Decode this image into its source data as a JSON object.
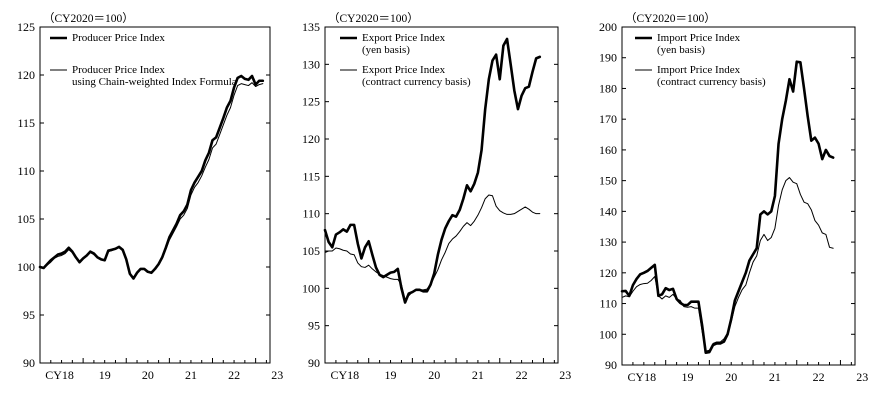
{
  "chart_data": [
    {
      "type": "line",
      "unit_label": "（CY2020＝100）",
      "ylim": [
        90,
        125
      ],
      "yticks": [
        "90",
        "95",
        "100",
        "105",
        "110",
        "115",
        "120",
        "125"
      ],
      "xlim": [
        0,
        64
      ],
      "x_tick_labels": [
        {
          "label": "CY18",
          "x": 0
        },
        {
          "label": "19",
          "x": 12
        },
        {
          "label": "20",
          "x": 24
        },
        {
          "label": "21",
          "x": 36
        },
        {
          "label": "22",
          "x": 48
        },
        {
          "label": "23",
          "x": 60
        }
      ],
      "series": [
        {
          "name": "Producer Price Index",
          "legend_lines": [
            "Producer Price Index"
          ],
          "style": "bold",
          "values": [
            100.0,
            99.9,
            100.3,
            100.7,
            101.0,
            101.3,
            101.4,
            101.6,
            102.0,
            101.6,
            101.0,
            100.5,
            100.9,
            101.2,
            101.6,
            101.4,
            101.0,
            100.8,
            100.7,
            101.7,
            101.8,
            101.9,
            102.1,
            101.8,
            100.8,
            99.3,
            98.8,
            99.4,
            99.8,
            99.8,
            99.5,
            99.4,
            99.8,
            100.3,
            101.0,
            102.0,
            103.1,
            103.8,
            104.5,
            105.4,
            105.8,
            106.5,
            108.0,
            108.8,
            109.4,
            110.0,
            111.1,
            111.9,
            113.2,
            113.5,
            114.5,
            115.5,
            116.6,
            117.3,
            118.7,
            119.7,
            119.9,
            119.6,
            119.5,
            119.9,
            119.0,
            119.4,
            119.4
          ]
        },
        {
          "name": "Producer Price Index using Chain-weighted Index Formula",
          "legend_lines": [
            "Producer Price Index",
            "using Chain-weighted Index Formula"
          ],
          "style": "thin",
          "values": [
            100.1,
            99.9,
            100.2,
            100.5,
            100.9,
            101.1,
            101.2,
            101.4,
            101.8,
            101.5,
            101.0,
            100.6,
            100.9,
            101.2,
            101.5,
            101.3,
            101.0,
            100.8,
            100.7,
            101.6,
            101.7,
            101.9,
            102.0,
            101.7,
            100.8,
            99.3,
            98.9,
            99.4,
            99.8,
            99.8,
            99.5,
            99.4,
            99.8,
            100.2,
            100.9,
            101.8,
            102.8,
            103.5,
            104.2,
            105.0,
            105.4,
            106.1,
            107.5,
            108.3,
            108.8,
            109.5,
            110.4,
            111.2,
            112.4,
            112.8,
            113.8,
            114.8,
            115.8,
            116.6,
            117.9,
            118.9,
            119.1,
            119.0,
            118.9,
            119.2,
            118.8,
            119.0,
            119.1
          ]
        }
      ]
    },
    {
      "type": "line",
      "unit_label": "（CY2020＝100）",
      "ylim": [
        90,
        135
      ],
      "yticks": [
        "90",
        "95",
        "100",
        "105",
        "110",
        "115",
        "120",
        "125",
        "130",
        "135"
      ],
      "xlim": [
        0,
        64
      ],
      "x_tick_labels": [
        {
          "label": "CY18",
          "x": 0
        },
        {
          "label": "19",
          "x": 12
        },
        {
          "label": "20",
          "x": 24
        },
        {
          "label": "21",
          "x": 36
        },
        {
          "label": "22",
          "x": 48
        },
        {
          "label": "23",
          "x": 60
        }
      ],
      "series": [
        {
          "name": "Export Price Index (yen basis)",
          "legend_lines": [
            "Export Price Index",
            "(yen basis)"
          ],
          "style": "bold",
          "values": [
            107.8,
            106.2,
            105.5,
            107.2,
            107.5,
            107.9,
            107.6,
            108.5,
            108.5,
            106.0,
            104.0,
            105.5,
            106.3,
            104.5,
            102.8,
            101.8,
            101.5,
            101.8,
            102.1,
            102.2,
            102.6,
            100.0,
            98.1,
            99.3,
            99.5,
            99.8,
            99.8,
            99.6,
            99.6,
            100.5,
            102.0,
            104.5,
            106.5,
            108.0,
            109.0,
            109.8,
            109.6,
            110.5,
            112.0,
            113.8,
            113.0,
            114.0,
            115.5,
            118.5,
            124.0,
            128.0,
            130.5,
            131.3,
            128.0,
            132.5,
            133.4,
            130.0,
            126.5,
            124.0,
            125.8,
            126.8,
            127.0,
            129.0,
            130.8,
            131.0
          ]
        },
        {
          "name": "Export Price Index (contract currency basis)",
          "legend_lines": [
            "Export Price Index",
            "(contract currency basis)"
          ],
          "style": "thin",
          "values": [
            104.8,
            105.0,
            105.0,
            105.4,
            105.3,
            105.1,
            105.0,
            104.6,
            104.5,
            103.4,
            102.9,
            102.8,
            103.1,
            102.6,
            102.2,
            101.9,
            101.7,
            101.5,
            101.3,
            101.2,
            101.2,
            100.5,
            98.5,
            99.0,
            99.5,
            99.8,
            99.8,
            99.8,
            99.9,
            100.5,
            101.5,
            102.5,
            103.8,
            104.8,
            106.0,
            106.6,
            107.0,
            107.6,
            108.3,
            108.8,
            108.4,
            109.0,
            109.8,
            110.8,
            112.0,
            112.5,
            112.4,
            111.0,
            110.4,
            110.1,
            109.9,
            109.9,
            110.0,
            110.3,
            110.6,
            110.9,
            110.6,
            110.2,
            110.0,
            110.0
          ]
        }
      ]
    },
    {
      "type": "line",
      "unit_label": "（CY2020＝100）",
      "ylim": [
        90,
        200
      ],
      "yticks": [
        "90",
        "100",
        "110",
        "120",
        "130",
        "140",
        "150",
        "160",
        "170",
        "180",
        "190",
        "200"
      ],
      "xlim": [
        0,
        64
      ],
      "x_tick_labels": [
        {
          "label": "CY18",
          "x": 0
        },
        {
          "label": "19",
          "x": 12
        },
        {
          "label": "20",
          "x": 24
        },
        {
          "label": "21",
          "x": 36
        },
        {
          "label": "22",
          "x": 48
        },
        {
          "label": "23",
          "x": 60
        }
      ],
      "series": [
        {
          "name": "Import Price Index (yen basis)",
          "legend_lines": [
            "Import Price Index",
            "(yen basis)"
          ],
          "style": "bold",
          "values": [
            114.0,
            114.1,
            112.5,
            116.0,
            118.0,
            119.5,
            120.0,
            120.6,
            121.6,
            122.6,
            112.5,
            113.0,
            115.0,
            114.4,
            114.8,
            111.5,
            110.2,
            109.5,
            109.5,
            110.6,
            110.6,
            110.6,
            103.0,
            94.0,
            94.2,
            96.5,
            97.0,
            97.0,
            97.6,
            100.0,
            105.0,
            111.0,
            114.0,
            117.0,
            120.0,
            124.0,
            126.0,
            128.0,
            139.0,
            140.0,
            139.0,
            140.0,
            145.0,
            162.0,
            170.0,
            176.0,
            183.0,
            179.0,
            188.7,
            188.5,
            180.0,
            171.0,
            163.0,
            164.0,
            162.0,
            157.0,
            160.0,
            158.0,
            157.5
          ]
        },
        {
          "name": "Import Price Index (contract currency basis)",
          "legend_lines": [
            "Import Price Index",
            "(contract currency basis)"
          ],
          "style": "thin",
          "values": [
            112.0,
            112.5,
            112.2,
            114.0,
            115.5,
            116.2,
            116.5,
            116.6,
            117.5,
            118.8,
            112.5,
            111.5,
            112.5,
            112.0,
            113.0,
            111.5,
            111.0,
            109.0,
            108.8,
            109.0,
            108.5,
            108.5,
            101.0,
            94.5,
            94.8,
            97.0,
            97.5,
            97.5,
            98.5,
            100.5,
            104.0,
            109.0,
            112.0,
            114.5,
            116.0,
            120.0,
            123.5,
            125.5,
            130.5,
            132.5,
            130.5,
            131.5,
            134.5,
            142.0,
            147.0,
            150.0,
            151.0,
            149.5,
            149.0,
            145.5,
            143.0,
            142.5,
            140.5,
            137.0,
            135.5,
            133.0,
            132.5,
            128.3,
            128.0
          ]
        }
      ]
    }
  ]
}
